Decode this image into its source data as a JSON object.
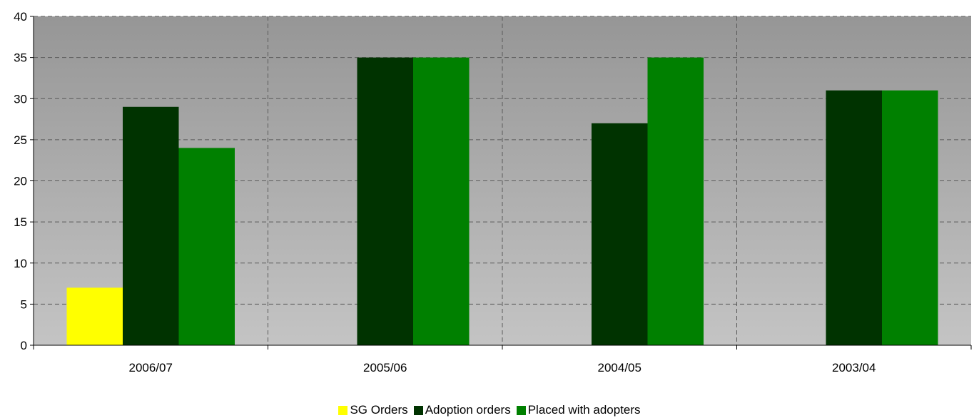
{
  "chart_data": {
    "type": "bar",
    "categories": [
      "2006/07",
      "2005/06",
      "2004/05",
      "2003/04"
    ],
    "series": [
      {
        "name": "SG Orders",
        "color": "#ffff00",
        "values": [
          7,
          null,
          null,
          null
        ]
      },
      {
        "name": "Adoption orders",
        "color": "#003300",
        "values": [
          29,
          35,
          27,
          31
        ]
      },
      {
        "name": "Placed with adopters",
        "color": "#008000",
        "values": [
          24,
          35,
          35,
          31
        ]
      }
    ],
    "title": "",
    "xlabel": "",
    "ylabel": "",
    "ylim": [
      0,
      40
    ],
    "yticks": [
      0,
      5,
      10,
      15,
      20,
      25,
      30,
      35,
      40
    ],
    "grid": true,
    "legend_position": "bottom",
    "plot_background": "gradient gray (dark top to light bottom)"
  }
}
